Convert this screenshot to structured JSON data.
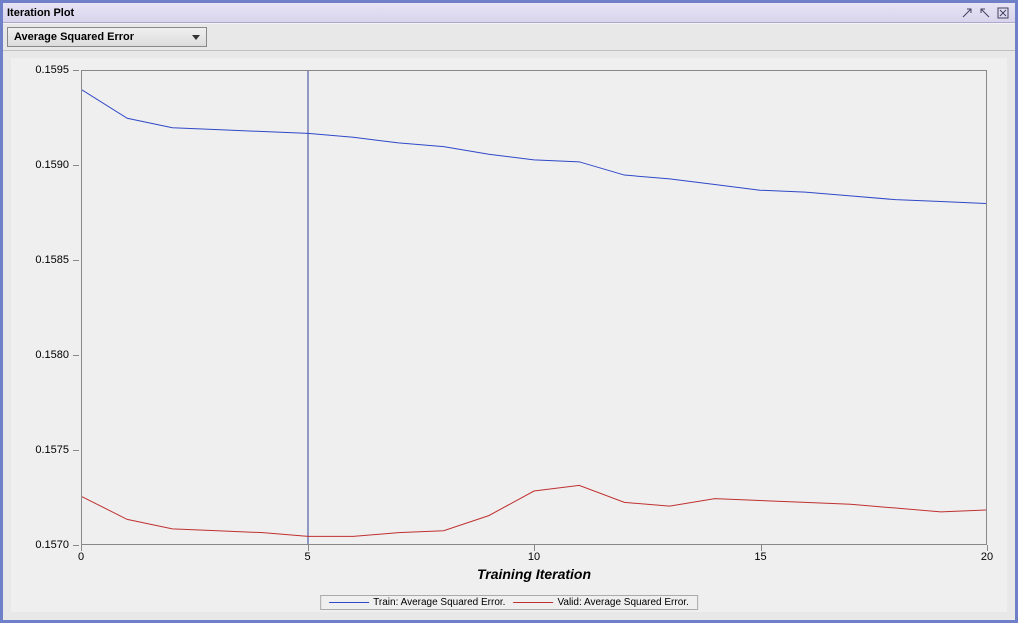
{
  "window": {
    "title": "Iteration Plot"
  },
  "dropdown": {
    "selected": "Average Squared Error"
  },
  "chart": {
    "type": "line",
    "x_label": "Training Iteration",
    "background_color": "#efefef",
    "border_color": "#888888",
    "xlim": [
      0,
      20
    ],
    "ylim": [
      0.157,
      0.1595
    ],
    "x_ticks": [
      0,
      5,
      10,
      15,
      20
    ],
    "y_ticks": [
      0.157,
      0.1575,
      0.158,
      0.1585,
      0.159,
      0.1595
    ],
    "vertical_marker_x": 5,
    "vertical_marker_color": "#3040a0",
    "series": [
      {
        "name": "train",
        "label": "Train: Average Squared Error.",
        "color": "#3048c8",
        "line_width": 1,
        "x": [
          0,
          1,
          2,
          3,
          4,
          5,
          6,
          7,
          8,
          9,
          10,
          11,
          12,
          13,
          14,
          15,
          16,
          17,
          18,
          19,
          20
        ],
        "y": [
          0.1594,
          0.15925,
          0.1592,
          0.15919,
          0.15918,
          0.15917,
          0.15915,
          0.15912,
          0.1591,
          0.15906,
          0.15903,
          0.15902,
          0.15895,
          0.15893,
          0.1589,
          0.15887,
          0.15886,
          0.15884,
          0.15882,
          0.15881,
          0.1588
        ]
      },
      {
        "name": "valid",
        "label": "Valid: Average Squared Error.",
        "color": "#c03030",
        "line_width": 1,
        "x": [
          0,
          1,
          2,
          3,
          4,
          5,
          6,
          7,
          8,
          9,
          10,
          11,
          12,
          13,
          14,
          15,
          16,
          17,
          18,
          19,
          20
        ],
        "y": [
          0.15725,
          0.15713,
          0.15708,
          0.15707,
          0.15706,
          0.15704,
          0.15704,
          0.15706,
          0.15707,
          0.15715,
          0.15728,
          0.15731,
          0.15722,
          0.1572,
          0.15724,
          0.15723,
          0.15722,
          0.15721,
          0.15719,
          0.15717,
          0.15718
        ]
      }
    ]
  },
  "legend": {
    "items": [
      {
        "label": "Train: Average Squared Error.",
        "color": "#3048c8"
      },
      {
        "label": "Valid: Average Squared Error.",
        "color": "#c03030"
      }
    ]
  }
}
